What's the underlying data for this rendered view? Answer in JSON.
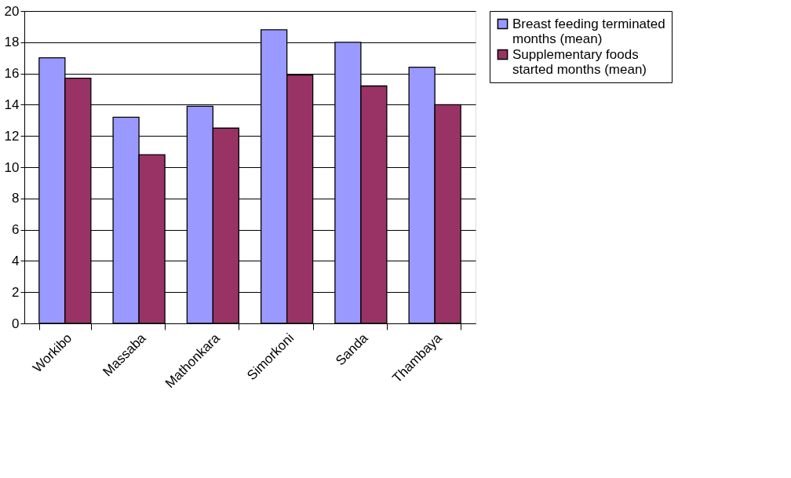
{
  "chart_data": {
    "type": "bar",
    "categories": [
      "Workibo",
      "Massaba",
      "Mathonkara",
      "Simorkoni",
      "Sanda",
      "Thambaya"
    ],
    "series": [
      {
        "name": "Breast feeding terminated months (mean)",
        "color": "#9999ff",
        "values": [
          17.0,
          13.2,
          13.9,
          18.8,
          18.0,
          16.4
        ]
      },
      {
        "name": "Supplementary foods started months (mean)",
        "color": "#993366",
        "values": [
          15.7,
          10.8,
          12.5,
          15.9,
          15.2,
          14.0
        ]
      }
    ],
    "ylim": [
      0,
      20
    ],
    "yticks": [
      0,
      2,
      4,
      6,
      8,
      10,
      12,
      14,
      16,
      18,
      20
    ],
    "grid": "y",
    "legend": "right"
  }
}
